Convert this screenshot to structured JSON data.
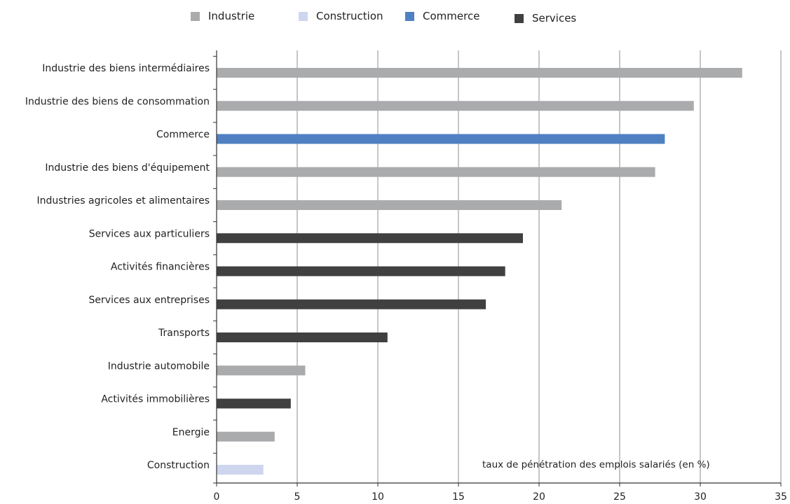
{
  "chart_data": {
    "type": "bar",
    "orientation": "horizontal",
    "categories": [
      "Industrie des biens intermédiaires",
      "Industrie des biens de consommation",
      "Commerce",
      "Industrie des biens d'équipement",
      "Industries agricoles et alimentaires",
      "Services aux particuliers",
      "Activités financières",
      "Services aux entreprises",
      "Transports",
      "Industrie automobile",
      "Activités immobilières",
      "Energie",
      "Construction"
    ],
    "values": [
      32.6,
      29.6,
      27.8,
      27.2,
      21.4,
      19.0,
      17.9,
      16.7,
      10.6,
      5.5,
      4.6,
      3.6,
      2.9
    ],
    "groups": [
      "Industrie",
      "Industrie",
      "Commerce",
      "Industrie",
      "Industrie",
      "Services",
      "Services",
      "Services",
      "Services",
      "Industrie",
      "Services",
      "Industrie",
      "Construction"
    ],
    "legend": [
      {
        "name": "Industrie",
        "color": "#aaabad"
      },
      {
        "name": "Construction",
        "color": "#cdd6ee"
      },
      {
        "name": "Commerce",
        "color": "#4f81c2"
      },
      {
        "name": "Services",
        "color": "#404040"
      }
    ],
    "xlim": [
      0,
      35
    ],
    "xticks": [
      0,
      5,
      10,
      15,
      20,
      25,
      30,
      35
    ],
    "grid": "vertical",
    "legend_position": "top",
    "annotation": "taux de pénétration des emplois salariés (en %)",
    "title": "",
    "xlabel": "",
    "ylabel": ""
  }
}
